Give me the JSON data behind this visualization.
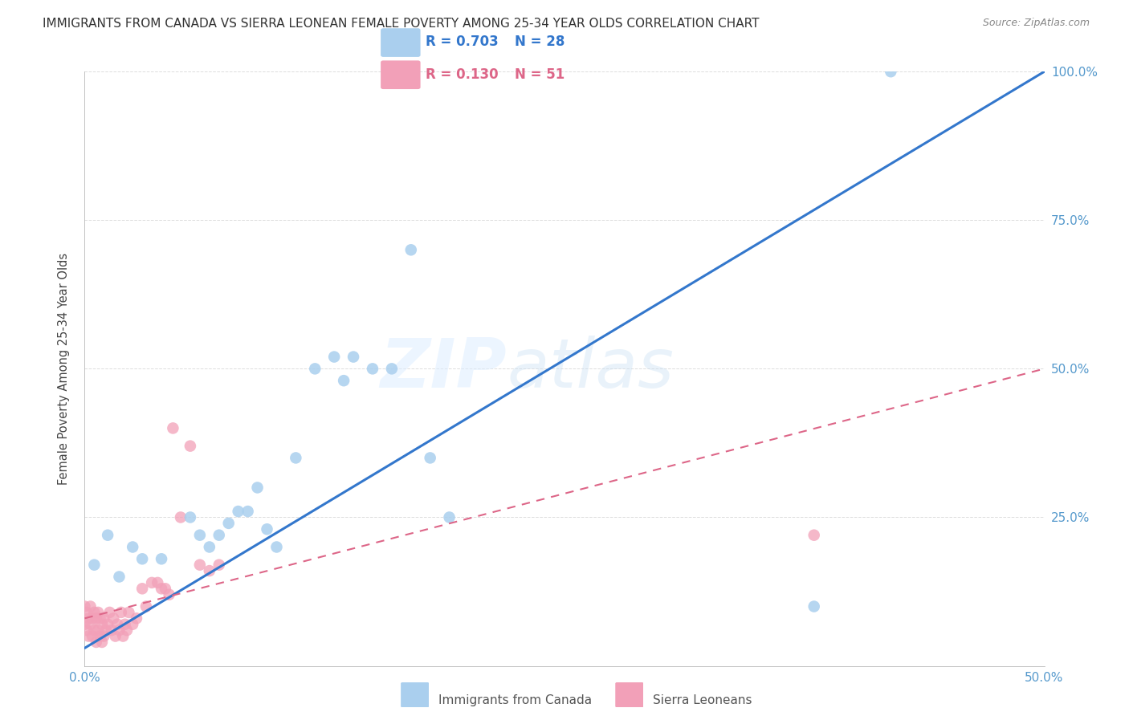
{
  "title": "IMMIGRANTS FROM CANADA VS SIERRA LEONEAN FEMALE POVERTY AMONG 25-34 YEAR OLDS CORRELATION CHART",
  "source": "Source: ZipAtlas.com",
  "ylabel": "Female Poverty Among 25-34 Year Olds",
  "xlim": [
    0.0,
    0.5
  ],
  "ylim": [
    0.0,
    1.0
  ],
  "legend_R1": "0.703",
  "legend_N1": "28",
  "legend_R2": "0.130",
  "legend_N2": "51",
  "legend_label1": "Immigrants from Canada",
  "legend_label2": "Sierra Leoneans",
  "canada_color": "#aacfee",
  "sierra_color": "#f2a0b8",
  "trend_canada_color": "#3377cc",
  "trend_sierra_color": "#dd6688",
  "watermark_zip": "ZIP",
  "watermark_atlas": "atlas",
  "canada_trend_x0": 0.0,
  "canada_trend_y0": 0.03,
  "canada_trend_x1": 0.5,
  "canada_trend_y1": 1.0,
  "sierra_trend_x0": 0.0,
  "sierra_trend_y0": 0.08,
  "sierra_trend_x1": 0.5,
  "sierra_trend_y1": 0.5,
  "canada_points_x": [
    0.005,
    0.012,
    0.018,
    0.025,
    0.03,
    0.04,
    0.055,
    0.06,
    0.065,
    0.07,
    0.075,
    0.08,
    0.085,
    0.09,
    0.095,
    0.1,
    0.11,
    0.12,
    0.13,
    0.135,
    0.14,
    0.15,
    0.16,
    0.17,
    0.18,
    0.19,
    0.38,
    0.42
  ],
  "canada_points_y": [
    0.17,
    0.22,
    0.15,
    0.2,
    0.18,
    0.18,
    0.25,
    0.22,
    0.2,
    0.22,
    0.24,
    0.26,
    0.26,
    0.3,
    0.23,
    0.2,
    0.35,
    0.5,
    0.52,
    0.48,
    0.52,
    0.5,
    0.5,
    0.7,
    0.35,
    0.25,
    0.1,
    1.0
  ],
  "sierra_points_x": [
    0.0,
    0.0,
    0.001,
    0.001,
    0.002,
    0.002,
    0.003,
    0.003,
    0.004,
    0.004,
    0.005,
    0.005,
    0.006,
    0.006,
    0.007,
    0.007,
    0.008,
    0.008,
    0.009,
    0.009,
    0.01,
    0.01,
    0.011,
    0.012,
    0.013,
    0.014,
    0.015,
    0.016,
    0.017,
    0.018,
    0.019,
    0.02,
    0.021,
    0.022,
    0.023,
    0.025,
    0.027,
    0.03,
    0.032,
    0.035,
    0.038,
    0.04,
    0.042,
    0.044,
    0.046,
    0.05,
    0.055,
    0.06,
    0.065,
    0.07,
    0.38
  ],
  "sierra_points_y": [
    0.07,
    0.1,
    0.06,
    0.09,
    0.05,
    0.08,
    0.07,
    0.1,
    0.05,
    0.08,
    0.06,
    0.09,
    0.04,
    0.08,
    0.06,
    0.09,
    0.05,
    0.08,
    0.04,
    0.07,
    0.05,
    0.08,
    0.06,
    0.07,
    0.09,
    0.06,
    0.08,
    0.05,
    0.07,
    0.06,
    0.09,
    0.05,
    0.07,
    0.06,
    0.09,
    0.07,
    0.08,
    0.13,
    0.1,
    0.14,
    0.14,
    0.13,
    0.13,
    0.12,
    0.4,
    0.25,
    0.37,
    0.17,
    0.16,
    0.17,
    0.22
  ]
}
